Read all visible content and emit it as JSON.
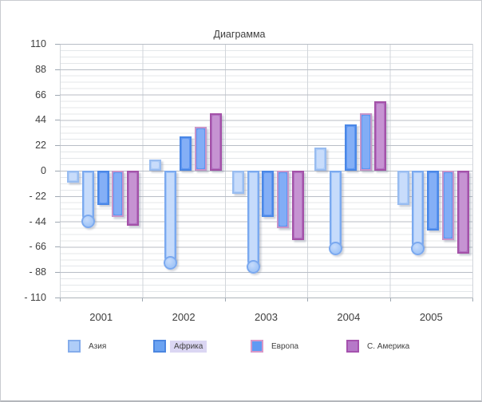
{
  "window": {
    "background": "#ffffff",
    "border_color": "#c9cbd0"
  },
  "chart_data": {
    "type": "bar",
    "title": "Диаграмма",
    "categories": [
      "2001",
      "2002",
      "2003",
      "2004",
      "2005"
    ],
    "series": [
      {
        "name": "Азия",
        "style": "bar",
        "values": [
          -10,
          10,
          -20,
          20,
          -30
        ],
        "fill": "#AFCDF8",
        "border": "#98BCF0",
        "inner": "#C8DCFB"
      },
      {
        "name": "",
        "style": "lollipop",
        "values": [
          -44,
          -80,
          -84,
          -68,
          -68
        ],
        "fill": "#A4C7F8",
        "border": "#7BA9EF",
        "inner": "#C6DBFB"
      },
      {
        "name": "Африка",
        "style": "bar",
        "values": [
          -30,
          30,
          -40,
          40,
          -52
        ],
        "fill": "#6098F2",
        "border": "#4A87E6",
        "inner": "#84AFF6"
      },
      {
        "name": "Европа",
        "style": "bar",
        "values": [
          -40,
          38,
          -50,
          50,
          -60
        ],
        "fill": "#5D97F2",
        "border": "#C795C9",
        "inner": "#82ADF6"
      },
      {
        "name": "С. Америка",
        "style": "bar",
        "values": [
          -48,
          50,
          -60,
          60,
          -72
        ],
        "fill": "#B272C2",
        "border": "#A452A8",
        "inner": "#C693D2"
      }
    ],
    "legend": [
      {
        "label": "Азия",
        "fill": "#AFCDF8",
        "border": "#84ACEB",
        "highlighted": false
      },
      {
        "label": "Африка",
        "fill": "#6BA3F2",
        "border": "#4C86E0",
        "highlighted": true
      },
      {
        "label": "Европа",
        "fill": "#5F9AF3",
        "border": "#D898C8",
        "highlighted": false
      },
      {
        "label": "С. Америка",
        "fill": "#B678C8",
        "border": "#A552AE",
        "highlighted": false
      }
    ],
    "legend_position": "bottom",
    "highlight_color": "#DBD6F3",
    "yticks": [
      "110",
      "88",
      "66",
      "44",
      "22",
      "0",
      "- 22",
      "- 44",
      "- 66",
      "- 88",
      "- 110"
    ],
    "ylim": [
      -110,
      110
    ],
    "y_major_unit": 22,
    "y_minor_unit": 5.5,
    "grid": {
      "major": true,
      "minor": true,
      "vertical": true
    }
  }
}
